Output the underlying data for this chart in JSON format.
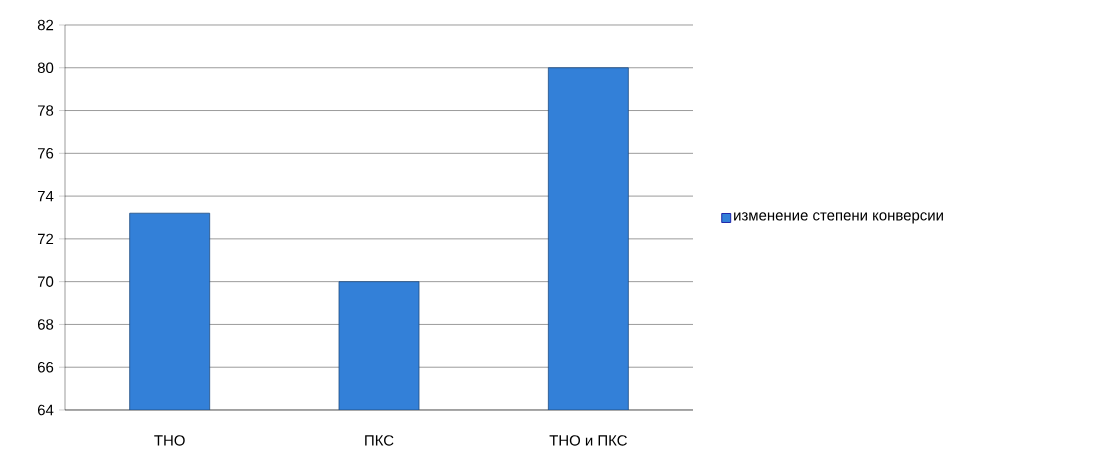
{
  "chart_data": {
    "type": "bar",
    "categories": [
      "ТНО",
      "ПКС",
      "ТНО и ПКС"
    ],
    "series": [
      {
        "name": "изменение степени конверсии",
        "color": "#3380d8",
        "values": [
          73.2,
          70,
          80
        ]
      }
    ],
    "ylim": [
      64,
      82
    ],
    "yticks": [
      64,
      66,
      68,
      70,
      72,
      74,
      76,
      78,
      80,
      82
    ],
    "grid": "y",
    "legend": "right"
  }
}
